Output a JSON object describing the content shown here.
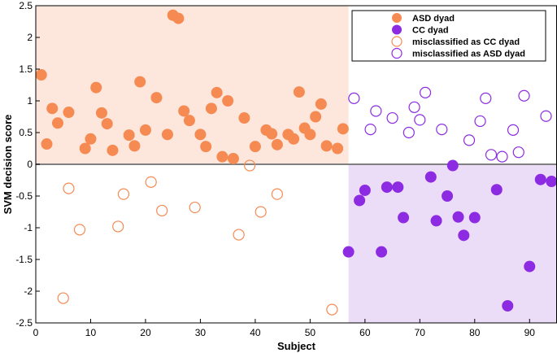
{
  "chart_data": {
    "type": "scatter",
    "xlabel": "Subject",
    "ylabel": "SVM decision score",
    "xlim": [
      0,
      95
    ],
    "ylim": [
      -2.5,
      2.5
    ],
    "xticks": [
      0,
      10,
      20,
      30,
      40,
      50,
      60,
      70,
      80,
      90
    ],
    "yticks": [
      -2.5,
      -2,
      -1.5,
      -1,
      -0.5,
      0,
      0.5,
      1,
      1.5,
      2,
      2.5
    ],
    "xtick_labels": [
      "0",
      "10",
      "20",
      "30",
      "40",
      "50",
      "60",
      "70",
      "80",
      "90"
    ],
    "ytick_labels": [
      "-2.5",
      "-2",
      "-1.5",
      "-1",
      "-0.5",
      "0",
      "0.5",
      "1",
      "1.5",
      "2",
      "2.5"
    ],
    "decision_boundary_y": 0,
    "class_split_x": 57,
    "legend_position": "top-right",
    "colors": {
      "asd": "#f58a52",
      "asd_region": "#fde6dc",
      "cc": "#8c2be2",
      "cc_region": "#ebdcf8",
      "boundary": "#808080"
    },
    "series": [
      {
        "name": "ASD dyad",
        "marker": "filled",
        "color": "#f58a52",
        "points": [
          [
            1,
            1.41
          ],
          [
            2,
            0.32
          ],
          [
            3,
            0.88
          ],
          [
            4,
            0.65
          ],
          [
            6,
            0.82
          ],
          [
            9,
            0.25
          ],
          [
            10,
            0.4
          ],
          [
            11,
            1.21
          ],
          [
            12,
            0.81
          ],
          [
            13,
            0.64
          ],
          [
            14,
            0.22
          ],
          [
            17,
            0.46
          ],
          [
            18,
            0.29
          ],
          [
            19,
            1.3
          ],
          [
            20,
            0.54
          ],
          [
            22,
            1.05
          ],
          [
            24,
            0.47
          ],
          [
            25,
            2.35
          ],
          [
            26,
            2.3
          ],
          [
            27,
            0.84
          ],
          [
            28,
            0.69
          ],
          [
            30,
            0.47
          ],
          [
            31,
            0.28
          ],
          [
            32,
            0.88
          ],
          [
            33,
            1.13
          ],
          [
            34,
            0.12
          ],
          [
            35,
            1.0
          ],
          [
            36,
            0.09
          ],
          [
            38,
            0.73
          ],
          [
            40,
            0.28
          ],
          [
            42,
            0.54
          ],
          [
            43,
            0.48
          ],
          [
            44,
            0.31
          ],
          [
            46,
            0.47
          ],
          [
            47,
            0.4
          ],
          [
            48,
            1.14
          ],
          [
            49,
            0.57
          ],
          [
            50,
            0.47
          ],
          [
            51,
            0.75
          ],
          [
            52,
            0.95
          ],
          [
            53,
            0.29
          ],
          [
            55,
            0.25
          ],
          [
            56,
            0.56
          ]
        ]
      },
      {
        "name": "CC dyad",
        "marker": "filled",
        "color": "#8c2be2",
        "points": [
          [
            57,
            -1.38
          ],
          [
            59,
            -0.57
          ],
          [
            60,
            -0.41
          ],
          [
            63,
            -1.38
          ],
          [
            64,
            -0.36
          ],
          [
            66,
            -0.36
          ],
          [
            67,
            -0.84
          ],
          [
            72,
            -0.2
          ],
          [
            73,
            -0.89
          ],
          [
            75,
            -0.5
          ],
          [
            76,
            -0.02
          ],
          [
            77,
            -0.83
          ],
          [
            78,
            -1.12
          ],
          [
            80,
            -0.84
          ],
          [
            84,
            -0.4
          ],
          [
            86,
            -2.23
          ],
          [
            90,
            -1.61
          ],
          [
            92,
            -0.24
          ],
          [
            94,
            -0.27
          ]
        ]
      },
      {
        "name": "misclassified as CC dyad",
        "marker": "open",
        "color": "#f58a52",
        "points": [
          [
            5,
            -2.11
          ],
          [
            6,
            -0.38
          ],
          [
            8,
            -1.03
          ],
          [
            15,
            -0.98
          ],
          [
            16,
            -0.47
          ],
          [
            21,
            -0.28
          ],
          [
            23,
            -0.73
          ],
          [
            29,
            -0.68
          ],
          [
            37,
            -1.11
          ],
          [
            39,
            -0.02
          ],
          [
            41,
            -0.75
          ],
          [
            44,
            -0.47
          ],
          [
            54,
            -2.29
          ]
        ]
      },
      {
        "name": "misclassified as ASD dyad",
        "marker": "open",
        "color": "#8c2be2",
        "points": [
          [
            58,
            1.04
          ],
          [
            61,
            0.55
          ],
          [
            62,
            0.84
          ],
          [
            65,
            0.73
          ],
          [
            68,
            0.5
          ],
          [
            69,
            0.9
          ],
          [
            70,
            0.7
          ],
          [
            71,
            1.13
          ],
          [
            74,
            0.55
          ],
          [
            79,
            0.38
          ],
          [
            81,
            0.68
          ],
          [
            82,
            1.04
          ],
          [
            83,
            0.15
          ],
          [
            85,
            0.12
          ],
          [
            87,
            0.54
          ],
          [
            88,
            0.19
          ],
          [
            89,
            1.08
          ],
          [
            93,
            0.76
          ]
        ]
      }
    ]
  }
}
